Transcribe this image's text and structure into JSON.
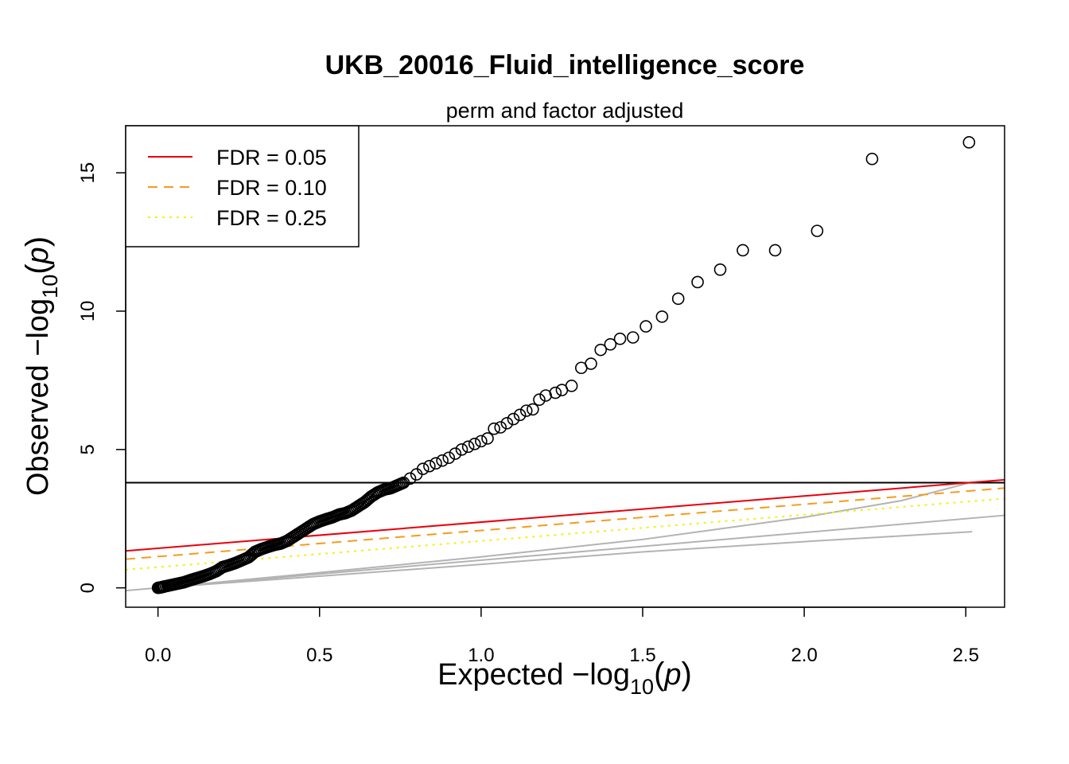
{
  "chart_data": {
    "type": "scatter",
    "title": "UKB_20016_Fluid_intelligence_score",
    "subtitle": "perm and factor adjusted",
    "xlabel": {
      "main": "Expected  −log",
      "sub": "10",
      "paren_open": "(",
      "var": "p",
      "paren_close": ")"
    },
    "ylabel": {
      "main": "Observed  −log",
      "sub": "10",
      "paren_open": "(",
      "var": "p",
      "paren_close": ")"
    },
    "xlim": [
      -0.1,
      2.62
    ],
    "ylim": [
      -0.7,
      16.7
    ],
    "xticks": [
      0.0,
      0.5,
      1.0,
      1.5,
      2.0,
      2.5
    ],
    "xtick_labels": [
      "0.0",
      "0.5",
      "1.0",
      "1.5",
      "2.0",
      "2.5"
    ],
    "yticks": [
      0,
      5,
      10,
      15
    ],
    "ytick_labels": [
      "0",
      "5",
      "10",
      "15"
    ],
    "legend_position": "top-left",
    "legend": [
      {
        "label": "FDR = 0.05",
        "color": "#e8000b",
        "dash": "solid"
      },
      {
        "label": "FDR = 0.10",
        "color": "#f59c1a",
        "dash": "dashed"
      },
      {
        "label": "FDR = 0.25",
        "color": "#f2f20c",
        "dash": "dotted"
      }
    ],
    "reference_lines": [
      {
        "name": "threshold",
        "type": "horizontal",
        "y": 3.8,
        "color": "#000000",
        "dash": "solid"
      },
      {
        "name": "FDR = 0.05",
        "intercept": 1.43,
        "slope": 0.945,
        "color": "#e8000b",
        "dash": "solid"
      },
      {
        "name": "FDR = 0.10",
        "intercept": 1.13,
        "slope": 0.945,
        "color": "#f59c1a",
        "dash": "dashed"
      },
      {
        "name": "FDR = 0.25",
        "intercept": 0.75,
        "slope": 0.945,
        "color": "#f2f20c",
        "dash": "dotted"
      }
    ],
    "null_band": [
      {
        "name": "upper",
        "x": [
          0,
          0.5,
          1.0,
          1.5,
          2.0,
          2.3,
          2.52
        ],
        "y": [
          0,
          0.55,
          1.12,
          1.75,
          2.55,
          3.15,
          3.82
        ],
        "color": "#b3b3b3"
      },
      {
        "name": "expected",
        "x": [
          -0.1,
          2.62
        ],
        "y": [
          -0.1,
          2.62
        ],
        "color": "#b3b3b3"
      },
      {
        "name": "lower",
        "x": [
          0,
          0.5,
          1.0,
          1.5,
          2.0,
          2.52
        ],
        "y": [
          0,
          0.42,
          0.85,
          1.3,
          1.67,
          2.03
        ],
        "color": "#b3b3b3"
      }
    ],
    "points_x": [
      2.51,
      2.21,
      2.04,
      1.91,
      1.81,
      1.74,
      1.67,
      1.61,
      1.56,
      1.51,
      1.47,
      1.43,
      1.4,
      1.37,
      1.34,
      1.31,
      1.28,
      1.25,
      1.23,
      1.2,
      1.18,
      1.16,
      1.14,
      1.12,
      1.1,
      1.08,
      1.06,
      1.04,
      1.02,
      1.0,
      0.98,
      0.96,
      0.94,
      0.92,
      0.9,
      0.88,
      0.86,
      0.84,
      0.82,
      0.8,
      0.78,
      0.76,
      0.74,
      0.72,
      0.7,
      0.68,
      0.66,
      0.64,
      0.62,
      0.6,
      0.58,
      0.56,
      0.54,
      0.52,
      0.5,
      0.48,
      0.46,
      0.44,
      0.42,
      0.4,
      0.38,
      0.36,
      0.34,
      0.32,
      0.3,
      0.28,
      0.26,
      0.24,
      0.22,
      0.2,
      0.18,
      0.16,
      0.14,
      0.12,
      0.1,
      0.08,
      0.06,
      0.04,
      0.02,
      0.01,
      0.0
    ],
    "points_y": [
      16.1,
      15.5,
      12.9,
      12.2,
      12.2,
      11.5,
      11.05,
      10.45,
      9.8,
      9.45,
      9.05,
      9.0,
      8.8,
      8.6,
      8.1,
      7.95,
      7.3,
      7.15,
      7.05,
      6.95,
      6.8,
      6.45,
      6.4,
      6.25,
      6.1,
      5.95,
      5.8,
      5.75,
      5.4,
      5.3,
      5.2,
      5.1,
      5.0,
      4.85,
      4.7,
      4.6,
      4.5,
      4.4,
      4.3,
      4.1,
      3.95,
      3.8,
      3.7,
      3.6,
      3.55,
      3.45,
      3.3,
      3.1,
      2.95,
      2.8,
      2.7,
      2.65,
      2.55,
      2.48,
      2.4,
      2.3,
      2.15,
      2.0,
      1.85,
      1.7,
      1.6,
      1.55,
      1.48,
      1.4,
      1.3,
      1.1,
      1.0,
      0.9,
      0.82,
      0.75,
      0.6,
      0.5,
      0.42,
      0.35,
      0.28,
      0.2,
      0.15,
      0.1,
      0.05,
      0.02,
      0.0
    ]
  }
}
